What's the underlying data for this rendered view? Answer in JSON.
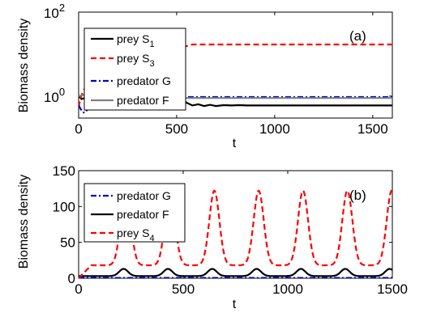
{
  "chart_data": [
    {
      "type": "line",
      "panel_label": "(a)",
      "xlabel": "t",
      "ylabel": "Biomass density",
      "xlim": [
        0,
        1600
      ],
      "ylim": [
        0.3,
        100
      ],
      "yscale": "log",
      "xticks": [
        "0",
        "500",
        "1000",
        "1500"
      ],
      "yticks": [
        {
          "base": "10",
          "exp": "2",
          "value": 100
        },
        {
          "base": "10",
          "exp": "0",
          "value": 1
        }
      ],
      "legend_position": "upper-left",
      "series": [
        {
          "name_base": "prey S",
          "name_sub": "1",
          "color": "#000000",
          "dash": "solid",
          "x": [
            0,
            5,
            15,
            30,
            50,
            100,
            200,
            300,
            400,
            480,
            520,
            550,
            580,
            610,
            640,
            670,
            700,
            740,
            780,
            820,
            860,
            900,
            1000,
            1100,
            1200,
            1300,
            1400,
            1500,
            1600
          ],
          "y": [
            1.0,
            0.95,
            0.85,
            0.9,
            0.95,
            1.0,
            1.0,
            1.0,
            1.0,
            1.0,
            0.9,
            0.7,
            0.6,
            0.64,
            0.58,
            0.62,
            0.58,
            0.61,
            0.6,
            0.61,
            0.6,
            0.6,
            0.6,
            0.6,
            0.6,
            0.6,
            0.6,
            0.6,
            0.6
          ]
        },
        {
          "name_base": "prey S",
          "name_sub": "3",
          "color": "#ff0000",
          "dash": "dashed",
          "x": [
            0,
            5,
            10,
            20,
            30,
            40,
            60,
            100,
            200,
            300,
            400,
            500,
            520,
            540,
            560,
            580,
            600,
            800,
            1000,
            1200,
            1400,
            1600
          ],
          "y": [
            0.55,
            0.7,
            0.9,
            1.2,
            1.5,
            2.0,
            3.0,
            5.0,
            8.0,
            10.0,
            11.0,
            11.0,
            13.0,
            15.0,
            16.0,
            17.0,
            17.0,
            17.0,
            17.0,
            17.0,
            17.0,
            17.0
          ]
        },
        {
          "name_base": "predator G",
          "name_sub": "",
          "color": "#0000cc",
          "dash": "dashdot",
          "x": [
            0,
            10,
            20,
            30,
            40,
            50,
            60,
            80,
            100,
            150,
            200,
            300,
            400,
            500,
            600,
            700,
            800,
            1000,
            1200,
            1400,
            1600
          ],
          "y": [
            0.6,
            0.5,
            0.42,
            0.4,
            0.45,
            0.55,
            0.7,
            0.9,
            0.95,
            0.95,
            0.95,
            0.95,
            0.95,
            0.95,
            0.95,
            0.95,
            0.95,
            0.95,
            0.95,
            0.95,
            0.95
          ]
        },
        {
          "name_base": "predator F",
          "name_sub": "",
          "color": "#808080",
          "dash": "solid",
          "x": [
            0,
            20,
            40,
            60,
            80,
            100,
            200,
            300,
            400,
            500,
            600,
            700,
            800,
            1000,
            1200,
            1400,
            1600
          ],
          "y": [
            1.0,
            1.05,
            1.1,
            1.0,
            0.95,
            0.92,
            0.9,
            0.9,
            0.9,
            0.9,
            0.9,
            0.9,
            0.9,
            0.9,
            0.9,
            0.9,
            0.9
          ]
        }
      ]
    },
    {
      "type": "line",
      "panel_label": "(b)",
      "xlabel": "t",
      "ylabel": "Biomass density",
      "xlim": [
        0,
        1500
      ],
      "ylim": [
        0,
        150
      ],
      "yscale": "linear",
      "xticks": [
        "0",
        "500",
        "1000",
        "1500"
      ],
      "yticks": [
        "0",
        "50",
        "100",
        "150"
      ],
      "legend_position": "upper-left",
      "series": [
        {
          "name_base": "predator G",
          "name_sub": "",
          "color": "#0000cc",
          "dash": "dashdot",
          "x": [
            0,
            1500
          ],
          "y": [
            0.5,
            0.5
          ]
        },
        {
          "name_base": "predator F",
          "name_sub": "",
          "color": "#000000",
          "dash": "solid",
          "periodic": {
            "start": 0,
            "period": 212,
            "first_peak": 215,
            "base": 3,
            "peak": 13,
            "width": 30,
            "end": 1500
          }
        },
        {
          "name_base": "prey S",
          "name_sub": "4",
          "color": "#ff0000",
          "dash": "dashed",
          "periodic": {
            "start": 0,
            "period": 212,
            "first_peak": 225,
            "base": 18,
            "peak": 122,
            "width": 34,
            "end": 1500,
            "initial": 0
          }
        }
      ]
    }
  ]
}
